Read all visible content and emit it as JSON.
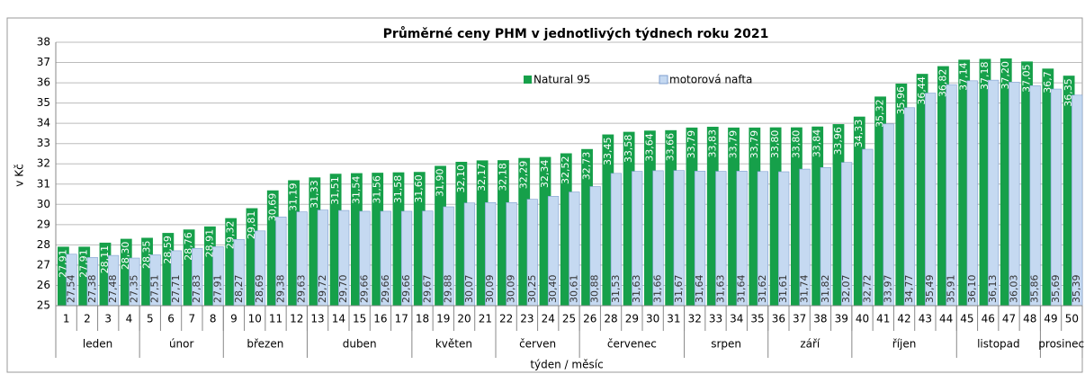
{
  "chart_data": {
    "type": "bar",
    "title": "Průměrné ceny PHM v jednotlivých týdnech roku 2021",
    "ylabel": "v Kč",
    "xlabel": "týden / měsíc",
    "categories": [
      "1",
      "2",
      "3",
      "4",
      "5",
      "6",
      "7",
      "8",
      "9",
      "10",
      "11",
      "12",
      "13",
      "14",
      "15",
      "16",
      "17",
      "18",
      "19",
      "20",
      "21",
      "22",
      "23",
      "24",
      "25",
      "26",
      "28",
      "29",
      "30",
      "31",
      "32",
      "33",
      "34",
      "35",
      "36",
      "37",
      "38",
      "39",
      "40",
      "41",
      "42",
      "43",
      "44",
      "45",
      "46",
      "47",
      "48",
      "49",
      "50"
    ],
    "groups": [
      {
        "label": "leden",
        "from": "1",
        "to": "4"
      },
      {
        "label": "únor",
        "from": "5",
        "to": "8"
      },
      {
        "label": "březen",
        "from": "9",
        "to": "12"
      },
      {
        "label": "duben",
        "from": "13",
        "to": "17"
      },
      {
        "label": "květen",
        "from": "18",
        "to": "21"
      },
      {
        "label": "červen",
        "from": "22",
        "to": "25"
      },
      {
        "label": "červenec",
        "from": "26",
        "to": "31"
      },
      {
        "label": "srpen",
        "from": "32",
        "to": "35"
      },
      {
        "label": "září",
        "from": "36",
        "to": "39"
      },
      {
        "label": "říjen",
        "from": "40",
        "to": "44"
      },
      {
        "label": "listopad",
        "from": "45",
        "to": "48"
      },
      {
        "label": "prosinec",
        "from": "49",
        "to": "50"
      }
    ],
    "series": [
      {
        "name": "Natural 95",
        "color": "#16a04a",
        "values": [
          27.91,
          27.91,
          28.11,
          28.3,
          28.35,
          28.59,
          28.76,
          28.91,
          29.32,
          29.81,
          30.69,
          31.19,
          31.33,
          31.51,
          31.54,
          31.56,
          31.58,
          31.6,
          31.9,
          32.1,
          32.17,
          32.18,
          32.29,
          32.34,
          32.52,
          32.73,
          33.45,
          33.58,
          33.64,
          33.66,
          33.79,
          33.83,
          33.79,
          33.79,
          33.8,
          33.8,
          33.84,
          33.96,
          34.33,
          35.32,
          35.96,
          36.44,
          36.82,
          37.14,
          37.18,
          37.2,
          37.05,
          36.7,
          36.35
        ],
        "value_labels": [
          "27,91",
          "27,91",
          "28,11",
          "28,30",
          "28,35",
          "28,59",
          "28,76",
          "28,91",
          "29,32",
          "29,81",
          "30,69",
          "31,19",
          "31,33",
          "31,51",
          "31,54",
          "31,56",
          "31,58",
          "31,60",
          "31,90",
          "32,10",
          "32,17",
          "32,18",
          "32,29",
          "32,34",
          "32,52",
          "32,73",
          "33,45",
          "33,58",
          "33,64",
          "33,66",
          "33,79",
          "33,83",
          "33,79",
          "33,79",
          "33,80",
          "33,80",
          "33,84",
          "33,96",
          "34,33",
          "35,32",
          "35,96",
          "36,44",
          "36,82",
          "37,14",
          "37,18",
          "37,20",
          "37,05",
          "36,7",
          "36,35"
        ]
      },
      {
        "name": "motorová nafta",
        "color": "#c5d9f1",
        "values": [
          27.54,
          27.38,
          27.48,
          27.35,
          27.51,
          27.71,
          27.83,
          27.91,
          28.27,
          28.69,
          29.38,
          29.63,
          29.72,
          29.7,
          29.66,
          29.66,
          29.66,
          29.67,
          29.88,
          30.07,
          30.09,
          30.09,
          30.25,
          30.4,
          30.61,
          30.88,
          31.53,
          31.63,
          31.66,
          31.67,
          31.64,
          31.63,
          31.64,
          31.62,
          31.61,
          31.74,
          31.82,
          32.07,
          32.72,
          33.97,
          34.77,
          35.49,
          35.91,
          36.1,
          36.13,
          36.03,
          35.86,
          35.69,
          35.39
        ],
        "value_labels": [
          "27,54",
          "27,38",
          "27,48",
          "27,35",
          "27,51",
          "27,71",
          "27,83",
          "27,91",
          "28,27",
          "28,69",
          "29,38",
          "29,63",
          "29,72",
          "29,70",
          "29,66",
          "29,66",
          "29,66",
          "29,67",
          "29,88",
          "30,07",
          "30,09",
          "30,09",
          "30,25",
          "30,40",
          "30,61",
          "30,88",
          "31,53",
          "31,63",
          "31,66",
          "31,67",
          "31,64",
          "31,63",
          "31,64",
          "31,62",
          "31,61",
          "31,74",
          "31,82",
          "32,07",
          "32,72",
          "33,97",
          "34,77",
          "35,49",
          "35,91",
          "36,10",
          "36,13",
          "36,03",
          "35,86",
          "35,69",
          "35,39"
        ]
      }
    ],
    "ylim": [
      25,
      38
    ],
    "yticks": [
      25,
      26,
      27,
      28,
      29,
      30,
      31,
      32,
      33,
      34,
      35,
      36,
      37,
      38
    ],
    "grid": true
  }
}
